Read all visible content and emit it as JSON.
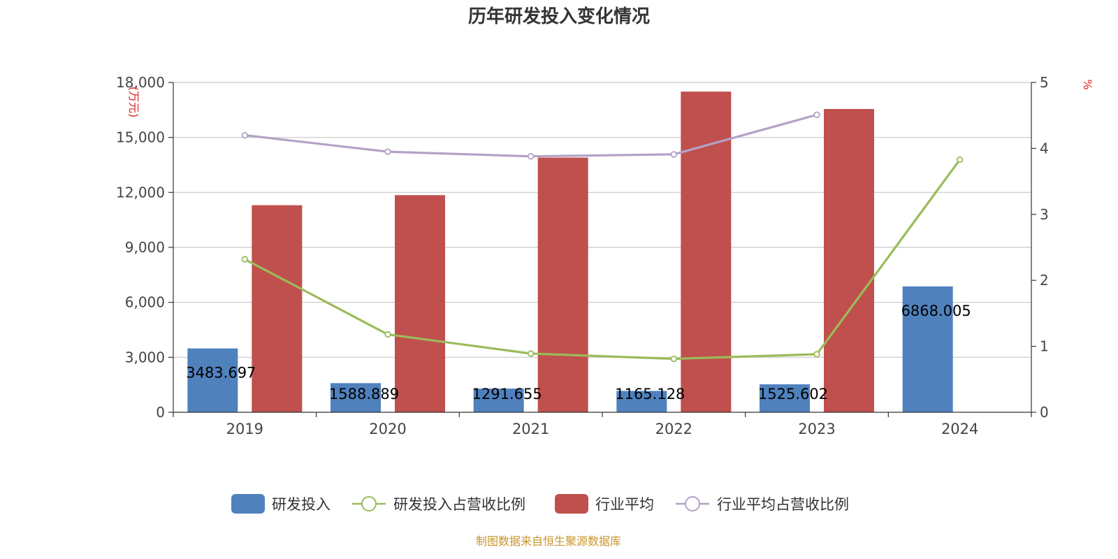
{
  "chart_data": {
    "type": "bar",
    "title": "历年研发投入变化情况",
    "categories": [
      "2019",
      "2020",
      "2021",
      "2022",
      "2023",
      "2024"
    ],
    "y_left": {
      "label": "(万元)",
      "min": 0,
      "max": 18000,
      "ticks": [
        0,
        3000,
        6000,
        9000,
        12000,
        15000,
        18000
      ],
      "tick_labels": [
        "0",
        "3,000",
        "6,000",
        "9,000",
        "12,000",
        "15,000",
        "18,000"
      ]
    },
    "y_right": {
      "label": "%",
      "min": 0,
      "max": 5,
      "ticks": [
        0,
        1,
        2,
        3,
        4,
        5
      ],
      "tick_labels": [
        "0",
        "1",
        "2",
        "3",
        "4",
        "5"
      ]
    },
    "grid": true,
    "legend_position": "bottom",
    "series": [
      {
        "name": "研发投入",
        "kind": "bar",
        "axis": "left",
        "color": "#4f81bd",
        "values": [
          3483.697,
          1588.889,
          1291.655,
          1165.128,
          1525.602,
          6868.005
        ],
        "labels": [
          "3483.697",
          "1588.889",
          "1291.655",
          "1165.128",
          "1525.602",
          "6868.005"
        ]
      },
      {
        "name": "研发投入占营收比例",
        "kind": "line",
        "axis": "right",
        "color": "#9bbb59",
        "values": [
          2.32,
          1.18,
          0.89,
          0.81,
          0.88,
          3.83
        ]
      },
      {
        "name": "行业平均",
        "kind": "bar",
        "axis": "left",
        "color": "#c0504d",
        "values": [
          11300,
          11850,
          13900,
          17500,
          16550,
          null
        ]
      },
      {
        "name": "行业平均占营收比例",
        "kind": "line",
        "axis": "right",
        "color": "#b3a2c7",
        "values": [
          4.2,
          3.95,
          3.88,
          3.91,
          4.51,
          null
        ]
      }
    ]
  },
  "footer": {
    "source": "制图数据来自恒生聚源数据库"
  }
}
